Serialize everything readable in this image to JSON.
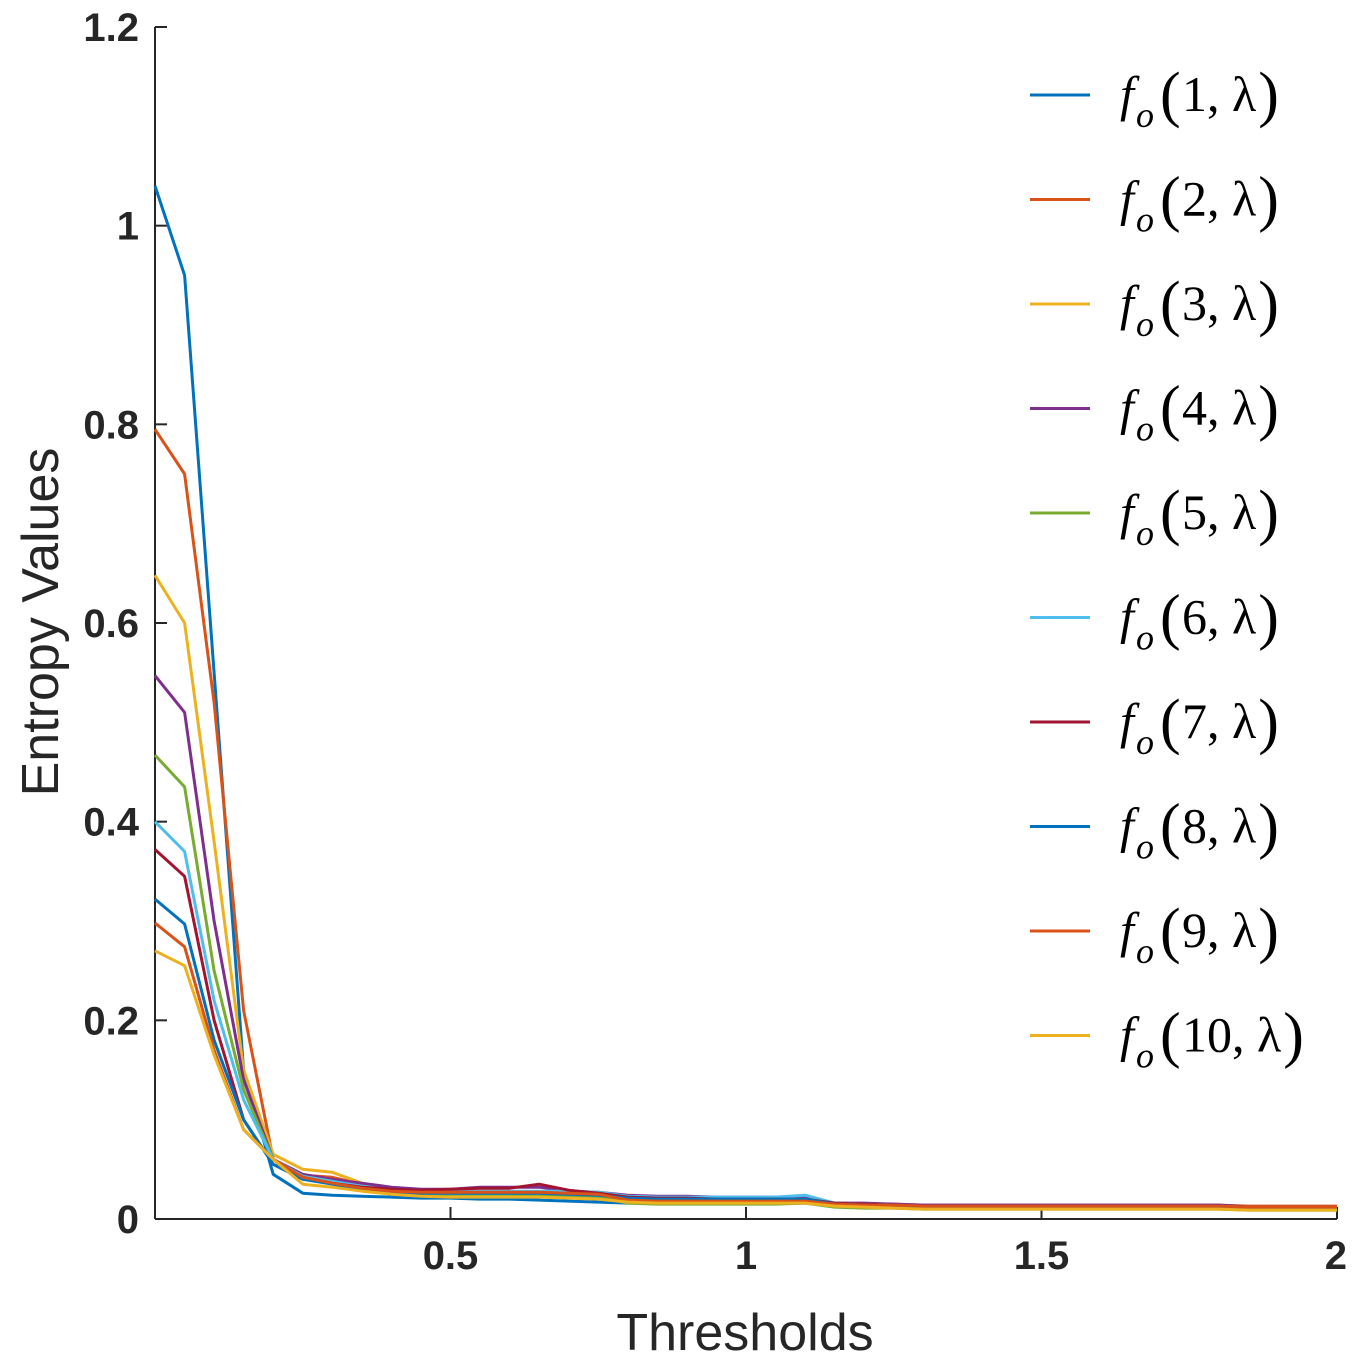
{
  "chart_data": {
    "type": "line",
    "title": "",
    "xlabel": "Thresholds",
    "ylabel": "Entropy Values",
    "xlim": [
      0,
      2
    ],
    "ylim": [
      0,
      1.2
    ],
    "xticks": [
      0.5,
      1,
      1.5,
      2
    ],
    "xtick_labels": [
      "0.5",
      "1",
      "1.5",
      "2"
    ],
    "yticks": [
      0,
      0.2,
      0.4,
      0.6,
      0.8,
      1,
      1.2
    ],
    "ytick_labels": [
      "0",
      "0.2",
      "0.4",
      "0.6",
      "0.8",
      "1",
      "1.2"
    ],
    "legend_position": "top-right",
    "x": [
      0,
      0.05,
      0.1,
      0.15,
      0.2,
      0.25,
      0.3,
      0.35,
      0.4,
      0.45,
      0.5,
      0.55,
      0.6,
      0.65,
      0.7,
      0.75,
      0.8,
      0.85,
      0.9,
      0.95,
      1.0,
      1.05,
      1.1,
      1.15,
      1.2,
      1.25,
      1.3,
      1.35,
      1.4,
      1.45,
      1.5,
      1.55,
      1.6,
      1.65,
      1.7,
      1.75,
      1.8,
      1.85,
      1.9,
      1.95,
      2.0
    ],
    "series": [
      {
        "name": "f_o(1,λ)",
        "label_main": "f",
        "label_sub": "o",
        "label_args": "1, λ",
        "color": "#0072BD",
        "values": [
          1.04,
          0.95,
          0.55,
          0.15,
          0.045,
          0.026,
          0.024,
          0.023,
          0.022,
          0.021,
          0.021,
          0.02,
          0.02,
          0.019,
          0.018,
          0.017,
          0.016,
          0.016,
          0.016,
          0.016,
          0.016,
          0.016,
          0.016,
          0.013,
          0.012,
          0.012,
          0.011,
          0.011,
          0.011,
          0.011,
          0.011,
          0.011,
          0.011,
          0.011,
          0.011,
          0.011,
          0.011,
          0.01,
          0.01,
          0.01,
          0.01
        ]
      },
      {
        "name": "f_o(2,λ)",
        "label_main": "f",
        "label_sub": "o",
        "label_args": "2, λ",
        "color": "#D95319",
        "values": [
          0.795,
          0.75,
          0.52,
          0.21,
          0.06,
          0.044,
          0.042,
          0.035,
          0.03,
          0.028,
          0.027,
          0.026,
          0.026,
          0.026,
          0.025,
          0.024,
          0.019,
          0.018,
          0.018,
          0.018,
          0.018,
          0.018,
          0.019,
          0.016,
          0.015,
          0.015,
          0.014,
          0.014,
          0.014,
          0.014,
          0.014,
          0.014,
          0.014,
          0.014,
          0.014,
          0.014,
          0.014,
          0.013,
          0.013,
          0.013,
          0.013
        ]
      },
      {
        "name": "f_o(3,λ)",
        "label_main": "f",
        "label_sub": "o",
        "label_args": "3, λ",
        "color": "#EDB120",
        "values": [
          0.648,
          0.6,
          0.38,
          0.15,
          0.065,
          0.05,
          0.047,
          0.036,
          0.03,
          0.028,
          0.027,
          0.027,
          0.027,
          0.026,
          0.025,
          0.024,
          0.018,
          0.017,
          0.017,
          0.017,
          0.017,
          0.017,
          0.018,
          0.015,
          0.014,
          0.014,
          0.013,
          0.013,
          0.013,
          0.013,
          0.013,
          0.013,
          0.013,
          0.013,
          0.013,
          0.013,
          0.013,
          0.012,
          0.012,
          0.012,
          0.012
        ]
      },
      {
        "name": "f_o(4,λ)",
        "label_main": "f",
        "label_sub": "o",
        "label_args": "4, λ",
        "color": "#7E2F8E",
        "values": [
          0.547,
          0.51,
          0.3,
          0.14,
          0.06,
          0.045,
          0.04,
          0.036,
          0.032,
          0.03,
          0.03,
          0.032,
          0.032,
          0.032,
          0.028,
          0.027,
          0.024,
          0.023,
          0.023,
          0.022,
          0.022,
          0.022,
          0.023,
          0.016,
          0.016,
          0.015,
          0.014,
          0.014,
          0.014,
          0.014,
          0.014,
          0.014,
          0.014,
          0.014,
          0.014,
          0.014,
          0.014,
          0.012,
          0.012,
          0.012,
          0.012
        ]
      },
      {
        "name": "f_o(5,λ)",
        "label_main": "f",
        "label_sub": "o",
        "label_args": "5, λ",
        "color": "#77AC30",
        "values": [
          0.467,
          0.435,
          0.25,
          0.13,
          0.06,
          0.043,
          0.038,
          0.03,
          0.026,
          0.025,
          0.025,
          0.025,
          0.025,
          0.024,
          0.023,
          0.022,
          0.016,
          0.015,
          0.015,
          0.015,
          0.015,
          0.015,
          0.016,
          0.012,
          0.011,
          0.011,
          0.01,
          0.01,
          0.01,
          0.01,
          0.01,
          0.01,
          0.01,
          0.01,
          0.01,
          0.01,
          0.01,
          0.009,
          0.009,
          0.009,
          0.009
        ]
      },
      {
        "name": "f_o(6,λ)",
        "label_main": "f",
        "label_sub": "o",
        "label_args": "6, λ",
        "color": "#4DBEEE",
        "values": [
          0.4,
          0.37,
          0.22,
          0.12,
          0.06,
          0.043,
          0.038,
          0.033,
          0.029,
          0.028,
          0.028,
          0.028,
          0.028,
          0.028,
          0.028,
          0.027,
          0.023,
          0.022,
          0.022,
          0.022,
          0.022,
          0.022,
          0.024,
          0.016,
          0.015,
          0.014,
          0.013,
          0.013,
          0.013,
          0.013,
          0.013,
          0.013,
          0.013,
          0.013,
          0.013,
          0.013,
          0.013,
          0.011,
          0.011,
          0.011,
          0.011
        ]
      },
      {
        "name": "f_o(7,λ)",
        "label_main": "f",
        "label_sub": "o",
        "label_args": "7, λ",
        "color": "#A2142F",
        "values": [
          0.372,
          0.345,
          0.2,
          0.1,
          0.055,
          0.042,
          0.036,
          0.032,
          0.03,
          0.029,
          0.03,
          0.031,
          0.031,
          0.035,
          0.029,
          0.026,
          0.022,
          0.021,
          0.021,
          0.02,
          0.02,
          0.02,
          0.02,
          0.016,
          0.015,
          0.014,
          0.013,
          0.013,
          0.013,
          0.013,
          0.013,
          0.013,
          0.013,
          0.013,
          0.013,
          0.013,
          0.013,
          0.011,
          0.011,
          0.011,
          0.011
        ]
      },
      {
        "name": "f_o(8,λ)",
        "label_main": "f",
        "label_sub": "o",
        "label_args": "8, λ",
        "color": "#0072BD",
        "values": [
          0.322,
          0.297,
          0.18,
          0.1,
          0.055,
          0.04,
          0.035,
          0.03,
          0.027,
          0.026,
          0.026,
          0.026,
          0.026,
          0.026,
          0.025,
          0.024,
          0.021,
          0.02,
          0.02,
          0.02,
          0.02,
          0.02,
          0.02,
          0.015,
          0.014,
          0.013,
          0.012,
          0.012,
          0.012,
          0.012,
          0.012,
          0.012,
          0.012,
          0.012,
          0.012,
          0.012,
          0.012,
          0.01,
          0.01,
          0.01,
          0.01
        ]
      },
      {
        "name": "f_o(9,λ)",
        "label_main": "f",
        "label_sub": "o",
        "label_args": "9, λ",
        "color": "#D95319",
        "values": [
          0.298,
          0.274,
          0.17,
          0.09,
          0.06,
          0.042,
          0.036,
          0.031,
          0.028,
          0.027,
          0.027,
          0.027,
          0.027,
          0.027,
          0.026,
          0.025,
          0.019,
          0.018,
          0.018,
          0.018,
          0.018,
          0.018,
          0.018,
          0.015,
          0.014,
          0.014,
          0.013,
          0.013,
          0.013,
          0.013,
          0.013,
          0.013,
          0.013,
          0.013,
          0.013,
          0.013,
          0.013,
          0.012,
          0.012,
          0.012,
          0.012
        ]
      },
      {
        "name": "f_o(10,λ)",
        "label_main": "f",
        "label_sub": "o",
        "label_args": "10, λ",
        "color": "#EDB120",
        "values": [
          0.27,
          0.255,
          0.165,
          0.09,
          0.06,
          0.035,
          0.032,
          0.028,
          0.025,
          0.023,
          0.022,
          0.022,
          0.022,
          0.022,
          0.021,
          0.02,
          0.017,
          0.016,
          0.016,
          0.016,
          0.016,
          0.016,
          0.016,
          0.013,
          0.012,
          0.011,
          0.01,
          0.01,
          0.01,
          0.01,
          0.01,
          0.01,
          0.01,
          0.01,
          0.01,
          0.01,
          0.01,
          0.009,
          0.009,
          0.009,
          0.009
        ]
      }
    ]
  }
}
